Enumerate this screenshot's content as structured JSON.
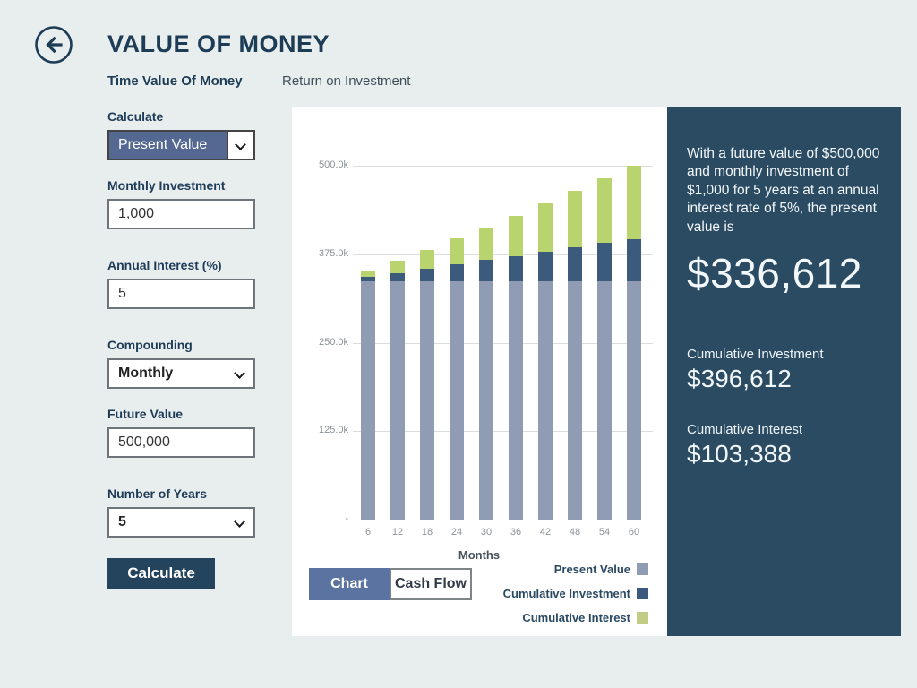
{
  "app": {
    "title": "VALUE OF MONEY"
  },
  "tabs": [
    {
      "label": "Time Value Of Money",
      "active": true
    },
    {
      "label": "Return on Investment",
      "active": false
    }
  ],
  "form": {
    "calculate_label": "Calculate",
    "calculate_value": "Present Value",
    "monthly_investment_label": "Monthly Investment",
    "monthly_investment_value": "1,000",
    "annual_interest_label": "Annual Interest (%)",
    "annual_interest_value": "5",
    "compounding_label": "Compounding",
    "compounding_value": "Monthly",
    "future_value_label": "Future Value",
    "future_value_value": "500,000",
    "years_label": "Number of Years",
    "years_value": "5",
    "calculate_button": "Calculate"
  },
  "chart_data": {
    "type": "bar",
    "stacked": true,
    "categories": [
      6,
      12,
      18,
      24,
      30,
      36,
      42,
      48,
      54,
      60
    ],
    "series": [
      {
        "name": "Present Value",
        "color": "#8f9cb3",
        "values": [
          336612,
          336612,
          336612,
          336612,
          336612,
          336612,
          336612,
          336612,
          336612,
          336612
        ]
      },
      {
        "name": "Cumulative Investment",
        "color": "#3c5a7c",
        "values": [
          6000,
          12000,
          18000,
          24000,
          30000,
          36000,
          42000,
          48000,
          54000,
          60000
        ]
      },
      {
        "name": "Cumulative Interest",
        "color": "#b9d46e",
        "values": [
          8566,
          17500,
          26812,
          36509,
          46604,
          57105,
          68024,
          79372,
          91153,
          103388
        ]
      }
    ],
    "xlabel": "Months",
    "ylabel": "",
    "ylim": [
      0,
      500000
    ],
    "yticks": [
      {
        "value": 0,
        "label": "-"
      },
      {
        "value": 125000,
        "label": "125.0k"
      },
      {
        "value": 250000,
        "label": "250.0k"
      },
      {
        "value": 375000,
        "label": "375.0k"
      },
      {
        "value": 500000,
        "label": "500.0k"
      }
    ],
    "grid": true,
    "legend_position": "bottom-right"
  },
  "toggle": {
    "chart": "Chart",
    "cashflow": "Cash Flow",
    "active": "Chart"
  },
  "legend": [
    {
      "label": "Present Value",
      "color": "#8f9cb3"
    },
    {
      "label": "Cumulative Investment",
      "color": "#3c5a7c"
    },
    {
      "label": "Cumulative Interest",
      "color": "#c2cc84"
    }
  ],
  "result_panel": {
    "summary": "With a future value of $500,000 and monthly investment of $1,000 for 5 years at an annual interest rate of 5%, the present value is",
    "primary_value": "$336,612",
    "cumulative_investment_label": "Cumulative Investment",
    "cumulative_investment_value": "$396,612",
    "cumulative_interest_label": "Cumulative Interest",
    "cumulative_interest_value": "$103,388"
  }
}
